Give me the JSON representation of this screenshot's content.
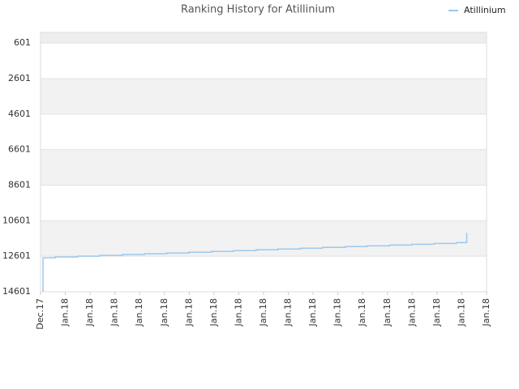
{
  "chart_data": {
    "type": "line",
    "title": "Ranking History for Atillinium",
    "series": [
      {
        "name": "Atillinium",
        "color": "#9cc8ee",
        "x": [
          0.1,
          0.1,
          0.59,
          0.59,
          1.5,
          1.5,
          2.39,
          2.39,
          3.3,
          3.3,
          4.19,
          4.19,
          5.1,
          5.1,
          5.98,
          5.98,
          6.9,
          6.9,
          7.78,
          7.78,
          8.7,
          8.7,
          9.58,
          9.58,
          10.5,
          10.5,
          11.38,
          11.38,
          12.3,
          12.3,
          13.18,
          13.18,
          14.09,
          14.09,
          14.98,
          14.98,
          15.89,
          15.89,
          16.78,
          16.78,
          17.2,
          17.2
        ],
        "values": [
          14601,
          12690,
          12690,
          12645,
          12645,
          12600,
          12600,
          12555,
          12555,
          12510,
          12510,
          12465,
          12465,
          12420,
          12420,
          12375,
          12375,
          12330,
          12330,
          12285,
          12285,
          12240,
          12240,
          12195,
          12195,
          12150,
          12150,
          12105,
          12105,
          12060,
          12060,
          12015,
          12015,
          11970,
          11970,
          11925,
          11925,
          11880,
          11880,
          11835,
          11835,
          11282
        ]
      }
    ],
    "xlim": [
      0,
      18
    ],
    "xticks": [
      {
        "value": 0,
        "label": "Dec.17"
      },
      {
        "value": 1,
        "label": "Jan.18"
      },
      {
        "value": 2,
        "label": "Jan.18"
      },
      {
        "value": 3,
        "label": "Jan.18"
      },
      {
        "value": 4,
        "label": "Jan.18"
      },
      {
        "value": 5,
        "label": "Jan.18"
      },
      {
        "value": 6,
        "label": "Jan.18"
      },
      {
        "value": 7,
        "label": "Jan.18"
      },
      {
        "value": 8,
        "label": "Jan.18"
      },
      {
        "value": 9,
        "label": "Jan.18"
      },
      {
        "value": 10,
        "label": "Jan.18"
      },
      {
        "value": 11,
        "label": "Jan.18"
      },
      {
        "value": 12,
        "label": "Jan.18"
      },
      {
        "value": 13,
        "label": "Jan.18"
      },
      {
        "value": 14,
        "label": "Jan.18"
      },
      {
        "value": 15,
        "label": "Jan.18"
      },
      {
        "value": 16,
        "label": "Jan.18"
      },
      {
        "value": 17,
        "label": "Jan.18"
      },
      {
        "value": 18,
        "label": "Jan.18"
      }
    ],
    "ylim": [
      14601,
      0
    ],
    "yticks": [
      601,
      2601,
      4601,
      6601,
      8601,
      10601,
      12601,
      14601
    ],
    "bands": true,
    "legend": "top-right"
  }
}
